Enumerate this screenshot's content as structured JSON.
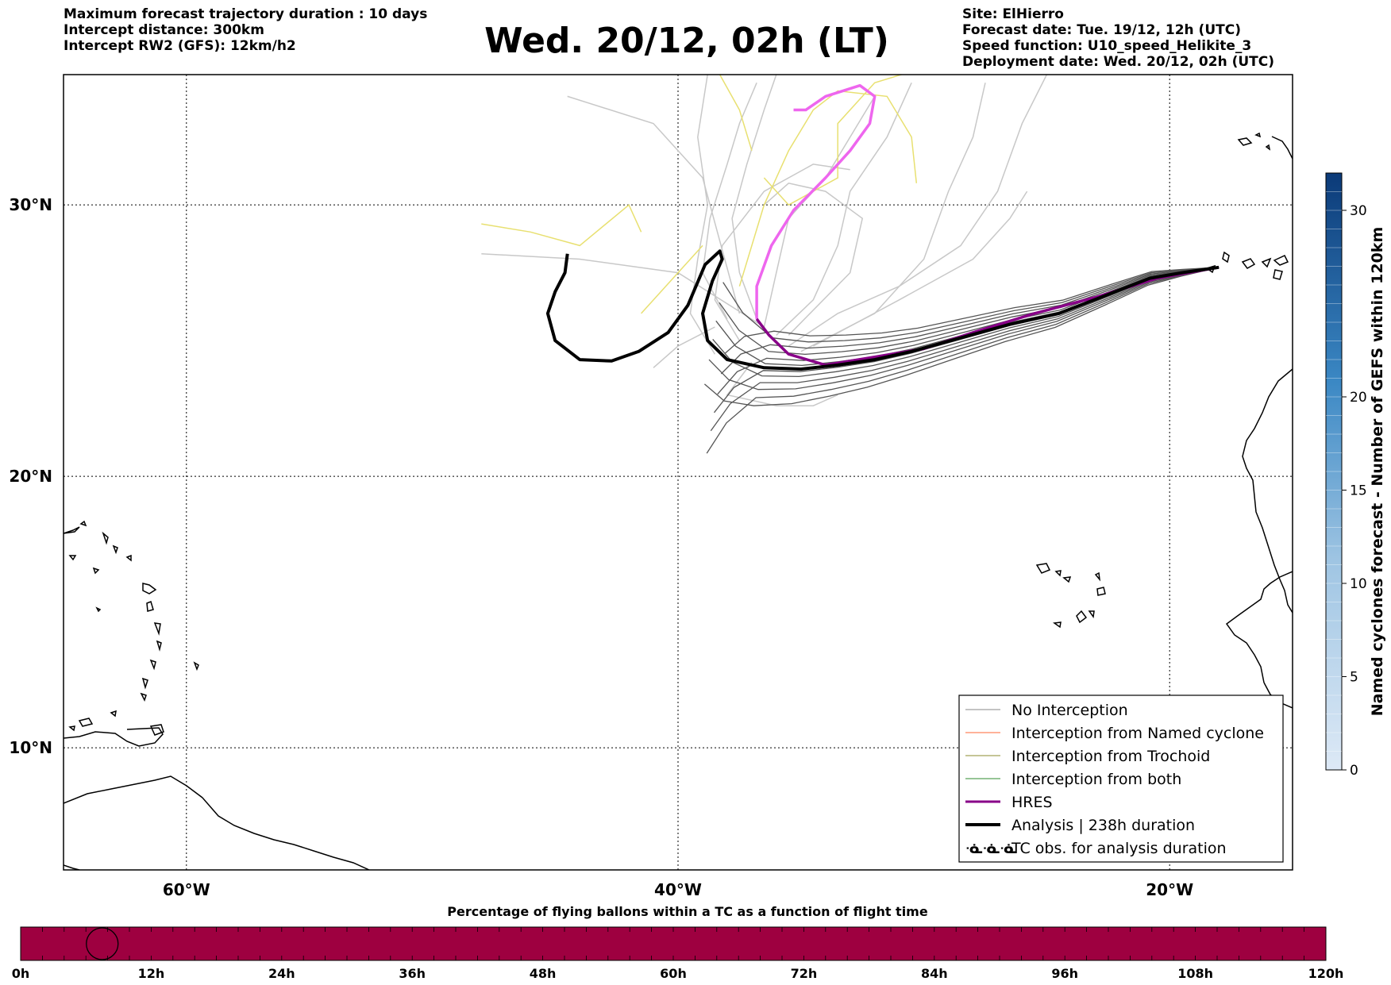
{
  "header": {
    "left_lines": [
      "Maximum forecast trajectory duration : 10 days",
      "Intercept distance: 300km",
      "Intercept RW2 (GFS):  12km/h2"
    ],
    "title": "Wed. 20/12, 02h (LT)",
    "right_lines": [
      "Site: ElHierro",
      "Forecast date: Tue. 19/12, 12h (UTC)",
      "Speed function: U10_speed_Helikite_3",
      "Deployment date: Wed. 20/12, 02h (UTC)"
    ]
  },
  "map": {
    "extent": {
      "lon_min": -65,
      "lon_max": -15,
      "lat_min": 5.5,
      "lat_max": 34.8
    },
    "lon_ticks": [
      {
        "value": -60,
        "label": "60°W"
      },
      {
        "value": -40,
        "label": "40°W"
      },
      {
        "value": -20,
        "label": "20°W"
      }
    ],
    "lat_ticks": [
      {
        "value": 30,
        "label": "30°N"
      },
      {
        "value": 20,
        "label": "20°N"
      },
      {
        "value": 10,
        "label": "10°N"
      }
    ],
    "grid": "dotted",
    "launch_site": {
      "lon": -18.0,
      "lat": 27.7
    },
    "colors": {
      "no_interception": "#555555",
      "gefs_light": "#c8c8c8",
      "yellow": "#e8e070",
      "pink": "#ee66ee",
      "named_cyclone": "#ff6633",
      "trochoid": "#8b8b2e",
      "both": "#2e8b2e",
      "hres": "#880088",
      "analysis": "#000000"
    },
    "analysis_track": [
      [
        -18.0,
        27.7
      ],
      [
        -19.5,
        27.5
      ],
      [
        -20.8,
        27.3
      ],
      [
        -22.5,
        26.7
      ],
      [
        -24.5,
        26.0
      ],
      [
        -26.5,
        25.6
      ],
      [
        -28.5,
        25.1
      ],
      [
        -30.5,
        24.6
      ],
      [
        -32.0,
        24.3
      ],
      [
        -33.5,
        24.1
      ],
      [
        -35.0,
        23.95
      ],
      [
        -36.5,
        24.0
      ],
      [
        -38.0,
        24.3
      ],
      [
        -38.8,
        25.0
      ],
      [
        -39.0,
        26.0
      ],
      [
        -38.6,
        27.2
      ],
      [
        -38.2,
        28.0
      ],
      [
        -38.3,
        28.3
      ],
      [
        -38.9,
        27.8
      ],
      [
        -39.6,
        26.3
      ],
      [
        -40.4,
        25.3
      ],
      [
        -41.6,
        24.6
      ],
      [
        -42.7,
        24.25
      ],
      [
        -44.0,
        24.3
      ],
      [
        -45.0,
        25.0
      ],
      [
        -45.3,
        26.0
      ],
      [
        -45.0,
        26.8
      ],
      [
        -44.6,
        27.5
      ],
      [
        -44.5,
        28.2
      ]
    ],
    "hres_track": [
      [
        -18.0,
        27.7
      ],
      [
        -20.5,
        27.3
      ],
      [
        -23.0,
        26.6
      ],
      [
        -25.5,
        26.0
      ],
      [
        -28.0,
        25.3
      ],
      [
        -30.0,
        24.7
      ],
      [
        -32.0,
        24.4
      ],
      [
        -34.0,
        24.1
      ],
      [
        -35.5,
        24.5
      ],
      [
        -36.3,
        25.2
      ],
      [
        -36.8,
        25.8
      ]
    ],
    "pink_track": [
      [
        -36.8,
        25.8
      ],
      [
        -36.8,
        27.0
      ],
      [
        -36.2,
        28.5
      ],
      [
        -35.3,
        29.8
      ],
      [
        -34.0,
        31.0
      ],
      [
        -33.0,
        32.0
      ],
      [
        -32.2,
        33.0
      ],
      [
        -32.0,
        34.0
      ],
      [
        -32.6,
        34.4
      ],
      [
        -34.0,
        34.0
      ],
      [
        -34.8,
        33.5
      ],
      [
        -35.3,
        33.5
      ]
    ],
    "light_tracks": [
      [
        [
          -36.8,
          25.8
        ],
        [
          -37.5,
          27.5
        ],
        [
          -37.8,
          29.5
        ],
        [
          -37.2,
          31.5
        ],
        [
          -36.5,
          33.5
        ],
        [
          -36.0,
          34.8
        ]
      ],
      [
        [
          -36.5,
          25.5
        ],
        [
          -36.0,
          27.5
        ],
        [
          -35.5,
          29.5
        ],
        [
          -34.0,
          31.0
        ],
        [
          -33.0,
          32.5
        ],
        [
          -32.0,
          34.0
        ]
      ],
      [
        [
          -38.0,
          25.8
        ],
        [
          -39.0,
          27.5
        ],
        [
          -38.7,
          29.5
        ],
        [
          -38.0,
          31.5
        ],
        [
          -37.5,
          33.0
        ],
        [
          -36.8,
          34.5
        ]
      ],
      [
        [
          -37.5,
          25.0
        ],
        [
          -38.5,
          26.5
        ],
        [
          -38.2,
          28.5
        ],
        [
          -36.5,
          30.5
        ],
        [
          -34.5,
          31.5
        ],
        [
          -33.0,
          31.3
        ]
      ],
      [
        [
          -38.5,
          24.5
        ],
        [
          -39.5,
          26.0
        ],
        [
          -39.2,
          28.0
        ],
        [
          -38.8,
          30.0
        ],
        [
          -39.2,
          32.5
        ],
        [
          -38.8,
          34.8
        ]
      ],
      [
        [
          -36.0,
          25.2
        ],
        [
          -34.5,
          26.5
        ],
        [
          -33.5,
          28.5
        ],
        [
          -33.0,
          30.5
        ],
        [
          -31.5,
          32.5
        ],
        [
          -30.5,
          34.5
        ]
      ],
      [
        [
          -35.5,
          24.8
        ],
        [
          -33.5,
          26.0
        ],
        [
          -31.0,
          27.0
        ],
        [
          -28.5,
          28.5
        ],
        [
          -27.0,
          30.5
        ],
        [
          -26.0,
          33.0
        ],
        [
          -25.0,
          34.8
        ]
      ],
      [
        [
          -35.0,
          24.6
        ],
        [
          -32.0,
          26.0
        ],
        [
          -30.0,
          28.0
        ],
        [
          -29.0,
          30.5
        ],
        [
          -28.0,
          32.5
        ],
        [
          -27.5,
          34.5
        ]
      ],
      [
        [
          -37.0,
          24.2
        ],
        [
          -38.0,
          23.0
        ],
        [
          -36.0,
          22.6
        ],
        [
          -34.5,
          22.6
        ],
        [
          -33.5,
          23.0
        ]
      ],
      [
        [
          -38.5,
          25.5
        ],
        [
          -40.0,
          24.8
        ],
        [
          -41.0,
          24.0
        ]
      ],
      [
        [
          -36.5,
          25.5
        ],
        [
          -40.0,
          27.5
        ],
        [
          -44.0,
          28.0
        ],
        [
          -48.0,
          28.2
        ]
      ],
      [
        [
          -37.5,
          26.0
        ],
        [
          -39.0,
          31.0
        ],
        [
          -41.0,
          33.0
        ],
        [
          -44.5,
          34.0
        ]
      ],
      [
        [
          -35.5,
          25.2
        ],
        [
          -33.0,
          27.5
        ],
        [
          -32.5,
          29.5
        ],
        [
          -34.0,
          30.5
        ],
        [
          -35.5,
          30.8
        ],
        [
          -36.5,
          30.0
        ]
      ],
      [
        [
          -34.5,
          24.8
        ],
        [
          -31.0,
          26.5
        ],
        [
          -28.0,
          28.0
        ],
        [
          -26.5,
          29.5
        ],
        [
          -25.8,
          30.5
        ]
      ]
    ],
    "yellow_tracks": [
      [
        [
          -37.5,
          27.0
        ],
        [
          -36.5,
          30.0
        ],
        [
          -35.5,
          32.0
        ],
        [
          -34.5,
          33.5
        ],
        [
          -33.5,
          34.2
        ],
        [
          -31.5,
          34.0
        ],
        [
          -30.5,
          32.5
        ],
        [
          -30.3,
          30.8
        ]
      ],
      [
        [
          -36.5,
          31.0
        ],
        [
          -35.5,
          30.0
        ],
        [
          -33.5,
          31.0
        ],
        [
          -33.5,
          33.0
        ],
        [
          -32.0,
          34.5
        ],
        [
          -30.2,
          35.0
        ]
      ],
      [
        [
          -41.5,
          26.0
        ],
        [
          -40.0,
          27.5
        ],
        [
          -39.0,
          28.5
        ]
      ],
      [
        [
          -41.5,
          29.0
        ],
        [
          -42.0,
          30.0
        ],
        [
          -44.0,
          28.5
        ],
        [
          -46.0,
          29.0
        ],
        [
          -48.0,
          29.3
        ]
      ],
      [
        [
          -38.3,
          34.8
        ],
        [
          -37.5,
          33.5
        ],
        [
          -37.0,
          32.0
        ]
      ]
    ],
    "legend": [
      {
        "label": "No Interception",
        "color": "#888888",
        "width": 1
      },
      {
        "label": "Interception from Named cyclone",
        "color": "#ff6633",
        "width": 1
      },
      {
        "label": "Interception from Trochoid",
        "color": "#8b8b2e",
        "width": 1
      },
      {
        "label": "Interception from both",
        "color": "#2e8b2e",
        "width": 1
      },
      {
        "label": "HRES",
        "color": "#880088",
        "width": 3
      },
      {
        "label": "Analysis | 238h duration",
        "color": "#000000",
        "width": 4
      },
      {
        "label": "TC obs. for analysis duration",
        "color": "#000000",
        "width": 0,
        "marker": "ᓍᓍᓍ"
      }
    ]
  },
  "colorbar": {
    "label": "Named cyclones forecast - Number of GEFS within 120km",
    "min": 0,
    "max": 32,
    "ticks": [
      0,
      5,
      10,
      15,
      20,
      30
    ],
    "color_low": "#dde9f6",
    "color_high": "#0b3a78"
  },
  "timebar": {
    "title": "Percentage of flying ballons within a TC as a function of flight time",
    "ticks": [
      "0h",
      "12h",
      "24h",
      "36h",
      "48h",
      "60h",
      "72h",
      "84h",
      "96h",
      "108h",
      "120h"
    ],
    "max_hours": 120,
    "fill_color": "#9e0040",
    "marker_hour": 7.5
  }
}
